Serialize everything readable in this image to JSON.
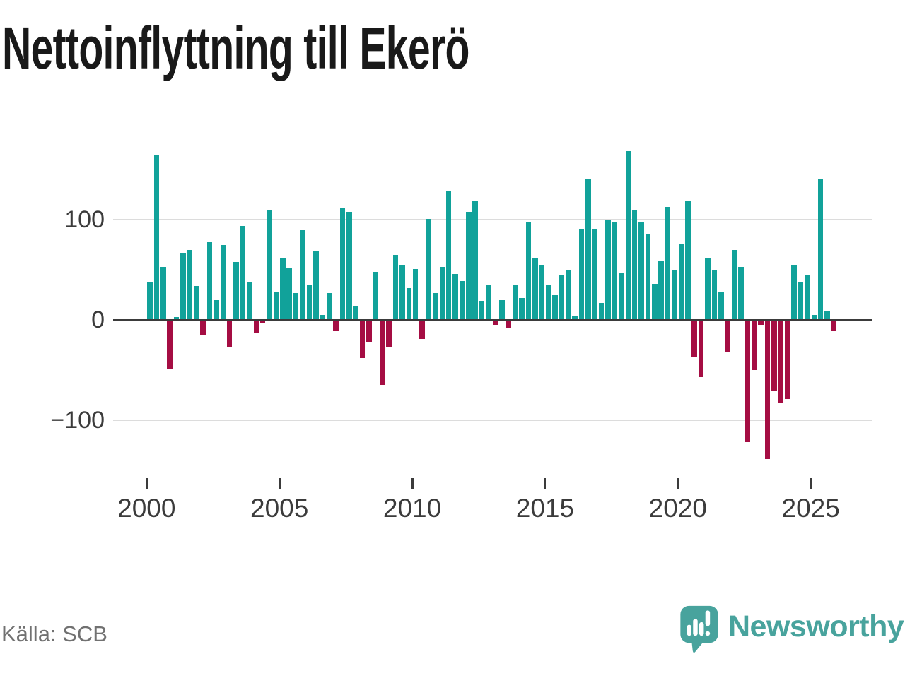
{
  "title": "Nettoinflyttning till Ekerö",
  "source": "Källa: SCB",
  "branding": {
    "name": "Newsworthy",
    "icon": "bar-chart-speech-bubble-icon"
  },
  "colors": {
    "positive": "#11a29a",
    "negative": "#a50d43",
    "brand": "#48a39d",
    "title_text": "#191919",
    "axis_text": "#3b3b3b",
    "grid": "#dcdcdc",
    "zero_line": "#3b3b3b",
    "source_text": "#717171",
    "background": "#ffffff"
  },
  "chart_data": {
    "type": "bar",
    "title": "Nettoinflyttning till Ekerö",
    "xlabel": "",
    "ylabel": "",
    "frequency": "quarterly",
    "x_tick_labels": [
      "2000",
      "2005",
      "2010",
      "2015",
      "2020",
      "2025"
    ],
    "y_ticks": [
      100,
      0,
      -100
    ],
    "ylim": [
      -145,
      180
    ],
    "grid": "horizontal",
    "positive_color": "#11a29a",
    "negative_color": "#a50d43",
    "categories": [
      "2000-Q1",
      "2000-Q2",
      "2000-Q3",
      "2000-Q4",
      "2001-Q1",
      "2001-Q2",
      "2001-Q3",
      "2001-Q4",
      "2002-Q1",
      "2002-Q2",
      "2002-Q3",
      "2002-Q4",
      "2003-Q1",
      "2003-Q2",
      "2003-Q3",
      "2003-Q4",
      "2004-Q1",
      "2004-Q2",
      "2004-Q3",
      "2004-Q4",
      "2005-Q1",
      "2005-Q2",
      "2005-Q3",
      "2005-Q4",
      "2006-Q1",
      "2006-Q2",
      "2006-Q3",
      "2006-Q4",
      "2007-Q1",
      "2007-Q2",
      "2007-Q3",
      "2007-Q4",
      "2008-Q1",
      "2008-Q2",
      "2008-Q3",
      "2008-Q4",
      "2009-Q1",
      "2009-Q2",
      "2009-Q3",
      "2009-Q4",
      "2010-Q1",
      "2010-Q2",
      "2010-Q3",
      "2010-Q4",
      "2011-Q1",
      "2011-Q2",
      "2011-Q3",
      "2011-Q4",
      "2012-Q1",
      "2012-Q2",
      "2012-Q3",
      "2012-Q4",
      "2013-Q1",
      "2013-Q2",
      "2013-Q3",
      "2013-Q4",
      "2014-Q1",
      "2014-Q2",
      "2014-Q3",
      "2014-Q4",
      "2015-Q1",
      "2015-Q2",
      "2015-Q3",
      "2015-Q4",
      "2016-Q1",
      "2016-Q2",
      "2016-Q3",
      "2016-Q4",
      "2017-Q1",
      "2017-Q2",
      "2017-Q3",
      "2017-Q4",
      "2018-Q1",
      "2018-Q2",
      "2018-Q3",
      "2018-Q4",
      "2019-Q1",
      "2019-Q2",
      "2019-Q3",
      "2019-Q4",
      "2020-Q1",
      "2020-Q2",
      "2020-Q3",
      "2020-Q4",
      "2021-Q1",
      "2021-Q2",
      "2021-Q3",
      "2021-Q4",
      "2022-Q1",
      "2022-Q2",
      "2022-Q3",
      "2022-Q4",
      "2023-Q1",
      "2023-Q2",
      "2023-Q3",
      "2023-Q4",
      "2024-Q1",
      "2024-Q2",
      "2024-Q3",
      "2024-Q4",
      "2025-Q1",
      "2025-Q2",
      "2025-Q3",
      "2025-Q4"
    ],
    "values": [
      38,
      165,
      53,
      -48,
      3,
      67,
      70,
      34,
      -14,
      78,
      20,
      75,
      -26,
      58,
      94,
      38,
      -13,
      -3,
      110,
      28,
      62,
      52,
      27,
      90,
      35,
      68,
      5,
      27,
      -10,
      112,
      108,
      14,
      -37,
      -21,
      48,
      -64,
      -27,
      65,
      55,
      32,
      51,
      -18,
      101,
      27,
      53,
      129,
      46,
      39,
      108,
      119,
      19,
      35,
      -4,
      20,
      -8,
      35,
      22,
      97,
      61,
      55,
      35,
      25,
      45,
      50,
      4,
      91,
      140,
      91,
      17,
      100,
      98,
      47,
      168,
      110,
      98,
      86,
      36,
      59,
      113,
      49,
      76,
      118,
      -36,
      -56,
      62,
      49,
      28,
      -32,
      70,
      53,
      -121,
      -49,
      -4,
      -138,
      -70,
      -82,
      -78,
      55,
      38,
      45,
      5,
      140,
      9,
      -10
    ]
  }
}
